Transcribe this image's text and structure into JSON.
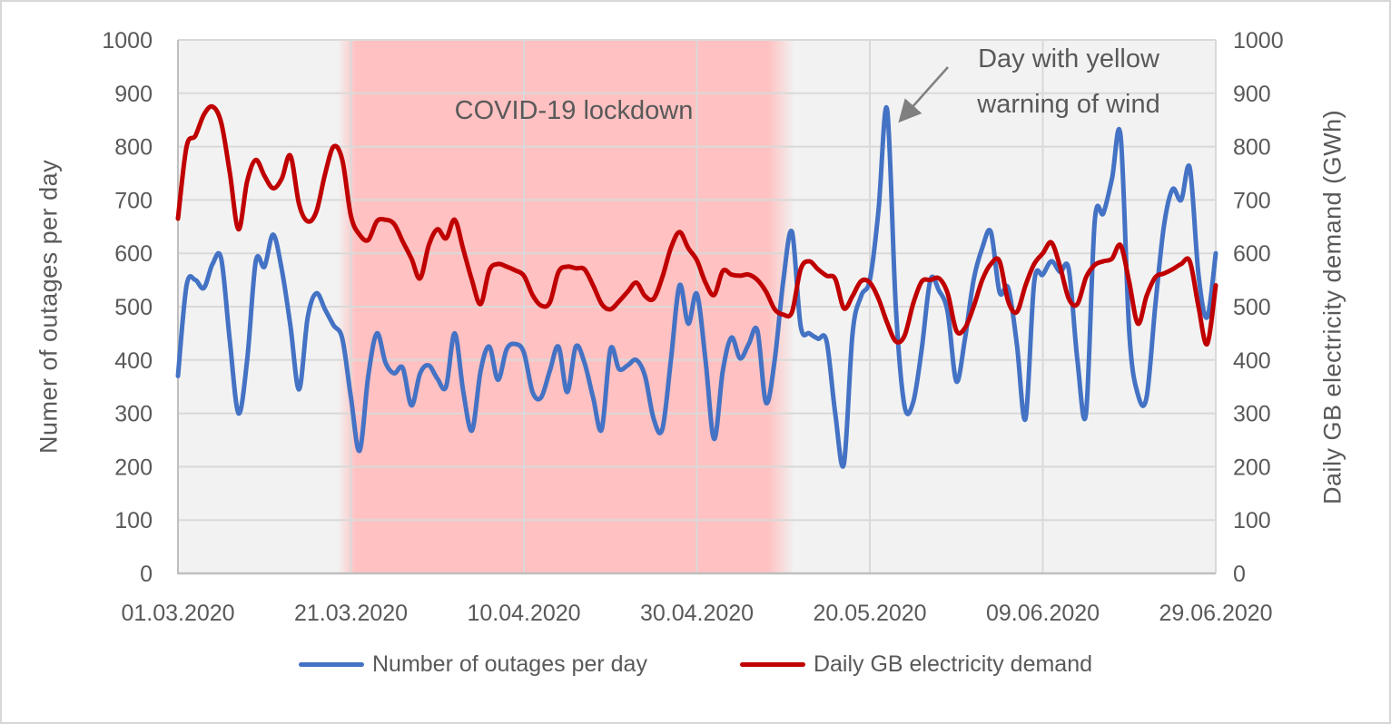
{
  "chart_data": {
    "type": "line",
    "left_axis_title": "Numer of outages per day",
    "right_axis_title": "Daily GB electricity demand (GWh)",
    "ylim": [
      0,
      1000
    ],
    "y_tick_labels": [
      "0",
      "100",
      "200",
      "300",
      "400",
      "500",
      "600",
      "700",
      "800",
      "900",
      "1000"
    ],
    "x_tick_days": [
      0,
      20,
      40,
      60,
      80,
      100,
      120
    ],
    "x_tick_labels": [
      "01.03.2020",
      "21.03.2020",
      "10.04.2020",
      "30.04.2020",
      "20.05.2020",
      "09.06.2020",
      "29.06.2020"
    ],
    "x_range_days": 120,
    "grid": true,
    "legend_position": "bottom",
    "series": [
      {
        "name": "Number of outages per day",
        "color": "#4472c4",
        "axis": "left",
        "values": [
          370,
          540,
          550,
          535,
          580,
          590,
          435,
          300,
          400,
          585,
          575,
          635,
          570,
          465,
          345,
          480,
          525,
          495,
          465,
          440,
          330,
          230,
          370,
          450,
          395,
          375,
          385,
          315,
          375,
          390,
          365,
          350,
          450,
          340,
          268,
          380,
          425,
          363,
          420,
          430,
          414,
          340,
          330,
          380,
          425,
          340,
          425,
          395,
          330,
          270,
          420,
          383,
          390,
          400,
          370,
          290,
          270,
          400,
          540,
          468,
          524,
          400,
          252,
          380,
          442,
          403,
          430,
          455,
          320,
          400,
          550,
          640,
          464,
          450,
          440,
          435,
          300,
          205,
          450,
          520,
          550,
          680,
          870,
          500,
          315,
          320,
          420,
          550,
          530,
          490,
          360,
          440,
          550,
          610,
          640,
          527,
          535,
          430,
          290,
          545,
          560,
          585,
          565,
          570,
          400,
          300,
          660,
          675,
          740,
          820,
          450,
          335,
          330,
          500,
          650,
          720,
          700,
          760,
          560,
          480,
          600
        ]
      },
      {
        "name": "Daily GB electricity demand",
        "color": "#c00000",
        "axis": "right",
        "values": [
          665,
          800,
          820,
          860,
          875,
          845,
          750,
          645,
          735,
          775,
          745,
          722,
          740,
          783,
          692,
          660,
          678,
          748,
          800,
          775,
          670,
          635,
          625,
          660,
          663,
          655,
          622,
          590,
          553,
          615,
          645,
          628,
          663,
          607,
          549,
          505,
          568,
          580,
          575,
          568,
          558,
          522,
          502,
          508,
          565,
          575,
          572,
          570,
          540,
          505,
          495,
          510,
          528,
          545,
          520,
          515,
          555,
          610,
          640,
          610,
          587,
          545,
          522,
          567,
          560,
          558,
          560,
          550,
          528,
          495,
          485,
          490,
          570,
          585,
          570,
          558,
          552,
          497,
          520,
          548,
          545,
          515,
          470,
          435,
          445,
          505,
          547,
          550,
          553,
          525,
          455,
          460,
          500,
          550,
          580,
          585,
          510,
          490,
          540,
          580,
          600,
          620,
          575,
          515,
          505,
          555,
          578,
          585,
          590,
          615,
          545,
          468,
          520,
          555,
          562,
          570,
          580,
          585,
          500,
          430,
          540
        ]
      }
    ],
    "lockdown_band": {
      "label": "COVID-19 lockdown",
      "color": "#ffc1c1",
      "fade_start_day": 18.5,
      "solid_start_day": 20.6,
      "solid_end_day": 68.2,
      "fade_end_day": 71.3
    },
    "annotation": {
      "text": "Day with yellow warning of wind",
      "target_day": 82,
      "target_value": 870
    }
  },
  "style_colors": {
    "plot_background": "#f2f2f2",
    "gridline": "#d9d9d9",
    "axis_line": "#bfbfbf",
    "tick_label": "#595959",
    "annotation_arrow": "#7f7f7f"
  }
}
